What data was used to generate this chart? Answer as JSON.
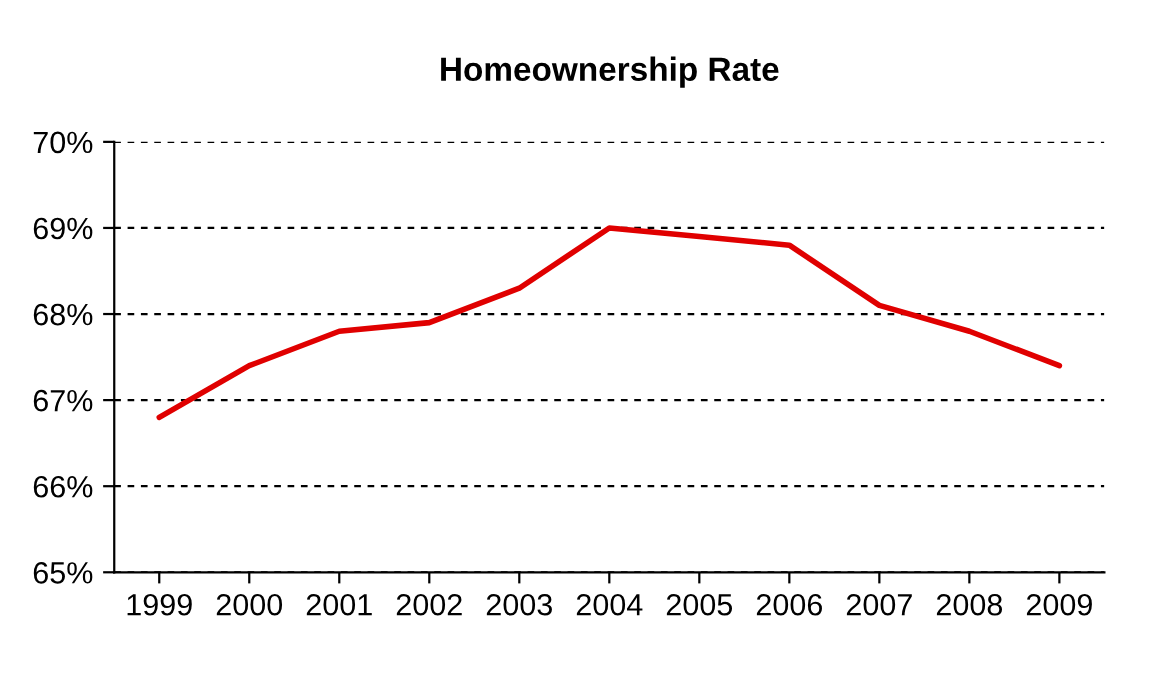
{
  "chart_data": {
    "type": "line",
    "title": "Homeownership Rate",
    "categories": [
      "1999",
      "2000",
      "2001",
      "2002",
      "2003",
      "2004",
      "2005",
      "2006",
      "2007",
      "2008",
      "2009"
    ],
    "series": [
      {
        "color": "#e00000",
        "values": [
          66.8,
          67.4,
          67.8,
          67.9,
          68.3,
          69.0,
          68.9,
          68.8,
          68.1,
          67.8,
          67.4
        ]
      }
    ],
    "ylim": [
      65,
      70
    ],
    "yticks": [
      {
        "value": 65,
        "label": "65%"
      },
      {
        "value": 66,
        "label": "66%"
      },
      {
        "value": 67,
        "label": "67%"
      },
      {
        "value": 68,
        "label": "68%"
      },
      {
        "value": 69,
        "label": "69%"
      },
      {
        "value": 70,
        "label": "70%"
      }
    ],
    "grid": "y",
    "legend": false
  }
}
